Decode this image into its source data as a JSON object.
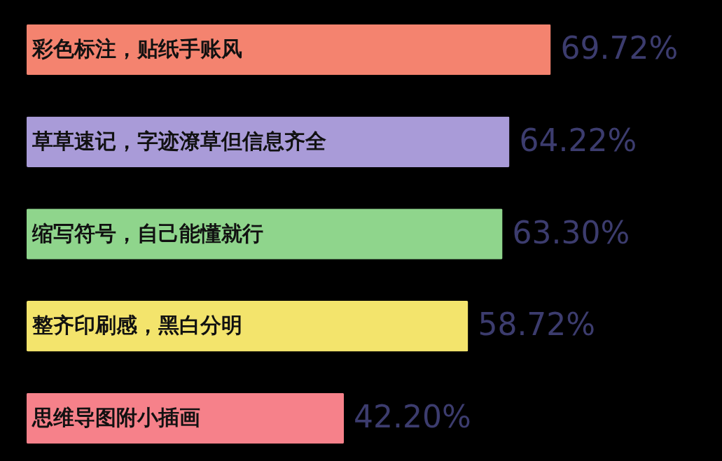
{
  "chart_data": {
    "type": "bar",
    "orientation": "horizontal",
    "categories": [
      "彩色标注，贴纸手账风",
      "草草速记，字迹潦草但信息齐全",
      "缩写符号，自己能懂就行",
      "整齐印刷感，黑白分明",
      "思维导图附小插画"
    ],
    "values": [
      69.72,
      64.22,
      63.3,
      58.72,
      42.2
    ],
    "colors": [
      "#f4836f",
      "#a99bd8",
      "#8fd58c",
      "#f3e46c",
      "#f6818a"
    ],
    "value_labels": [
      "69.72%",
      "64.22%",
      "63.30%",
      "58.72%",
      "42.20%"
    ]
  }
}
